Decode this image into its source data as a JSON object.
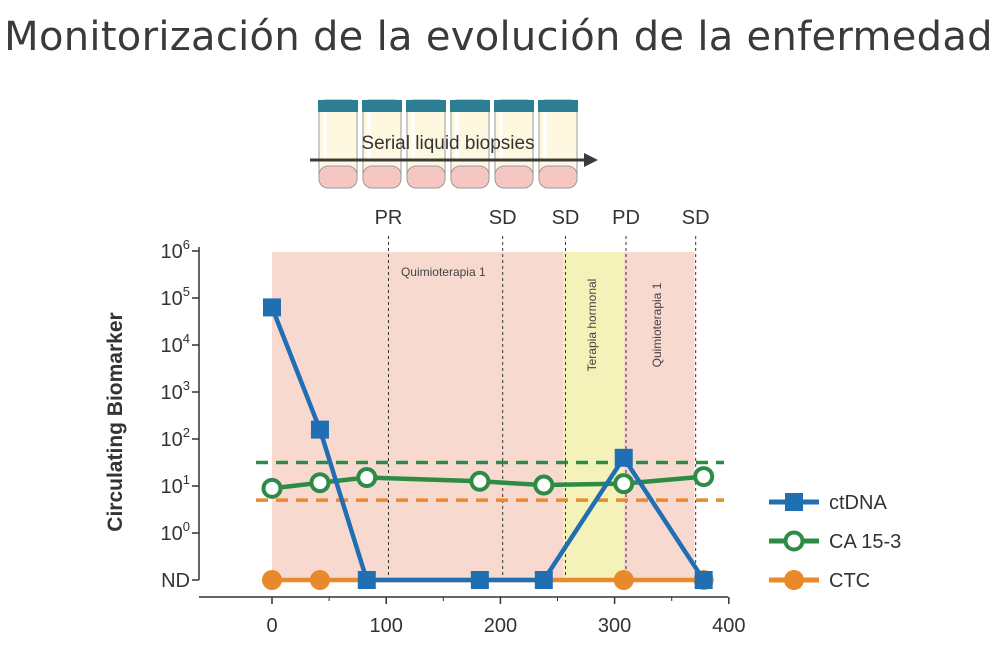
{
  "page": {
    "title": "Monitorización de la evolución de la enfermedad"
  },
  "colors": {
    "ctdna": "#1f6fb2",
    "ca153": "#2e8b46",
    "ctc": "#e8892c",
    "chemo_band": "#f8d9d0",
    "hormone_band": "#f4f2b8",
    "tube_cap": "#2d7d95",
    "tube_body": "#fff8e0",
    "tube_bottom": "#f6c6c2"
  },
  "biopsies": {
    "label": "Serial liquid biopsies",
    "tube_count": 6
  },
  "chart_data": {
    "type": "line",
    "ylabel": "Circulating Biomarker",
    "xlabel": "",
    "xlim": [
      -60,
      400
    ],
    "x_ticks": [
      {
        "value": 0,
        "label": "0"
      },
      {
        "value": 100,
        "label": "100"
      },
      {
        "value": 200,
        "label": "200"
      },
      {
        "value": 300,
        "label": "300"
      },
      {
        "value": 400,
        "label": "400"
      }
    ],
    "y_scale": "log10 with ND (not detected) level",
    "y_ticks": [
      {
        "level": -1,
        "label": "ND",
        "exp": ""
      },
      {
        "level": 0,
        "label": "10",
        "exp": "0"
      },
      {
        "level": 1,
        "label": "10",
        "exp": "1"
      },
      {
        "level": 2,
        "label": "10",
        "exp": "2"
      },
      {
        "level": 3,
        "label": "10",
        "exp": "3"
      },
      {
        "level": 4,
        "label": "10",
        "exp": "4"
      },
      {
        "level": 5,
        "label": "10",
        "exp": "5"
      },
      {
        "level": 6,
        "label": "10",
        "exp": "6"
      }
    ],
    "bands": [
      {
        "label": "Quimioterapia 1",
        "from": 0,
        "to": 255,
        "kind": "chemo",
        "orientation": "horizontal",
        "label_x": 150
      },
      {
        "label": "Terapia hormonal",
        "from": 255,
        "to": 308,
        "kind": "hormone",
        "orientation": "vertical",
        "label_x": 281
      },
      {
        "label": "Quimioterapia 1",
        "from": 308,
        "to": 370,
        "kind": "chemo",
        "orientation": "vertical",
        "label_x": 338
      }
    ],
    "events": [
      {
        "label": "PR",
        "x": 102
      },
      {
        "label": "SD",
        "x": 202
      },
      {
        "label": "SD",
        "x": 257
      },
      {
        "label": "PD",
        "x": 310
      },
      {
        "label": "SD",
        "x": 371
      }
    ],
    "thresholds": [
      {
        "series": "CA 15-3",
        "level": 1.5
      },
      {
        "series": "CTC",
        "level": 0.7
      }
    ],
    "series": [
      {
        "name": "ctDNA",
        "key": "ctdna",
        "marker": "square",
        "points": [
          {
            "x": 0,
            "y": 4.8
          },
          {
            "x": 42,
            "y": 2.2
          },
          {
            "x": 83,
            "y": -1
          },
          {
            "x": 182,
            "y": -1
          },
          {
            "x": 238,
            "y": -1
          },
          {
            "x": 308,
            "y": 1.6
          },
          {
            "x": 378,
            "y": -1
          }
        ]
      },
      {
        "name": "CA 15-3",
        "key": "ca153",
        "marker": "circle",
        "points": [
          {
            "x": 0,
            "y": 0.95
          },
          {
            "x": 42,
            "y": 1.07
          },
          {
            "x": 83,
            "y": 1.18
          },
          {
            "x": 182,
            "y": 1.1
          },
          {
            "x": 238,
            "y": 1.02
          },
          {
            "x": 308,
            "y": 1.05
          },
          {
            "x": 378,
            "y": 1.2
          }
        ]
      },
      {
        "name": "CTC",
        "key": "ctc",
        "marker": "dot",
        "points": [
          {
            "x": 0,
            "y": -1
          },
          {
            "x": 42,
            "y": -1
          },
          {
            "x": 308,
            "y": -1
          },
          {
            "x": 378,
            "y": -1
          }
        ]
      }
    ],
    "legend": {
      "placement": "right",
      "order": [
        "ctdna",
        "ca153",
        "ctc"
      ]
    }
  }
}
